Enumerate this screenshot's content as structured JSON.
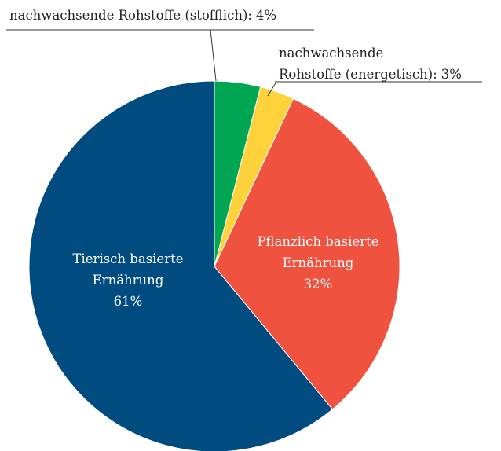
{
  "chart_data": {
    "type": "pie",
    "categories": [
      "nachwachsende Rohstoffe (stofflich):",
      "nachwachsende\nRohstoffe (energetisch):",
      "Pflanzlich basierte\nErnährung",
      "Tierisch basierte\nErnährung"
    ],
    "values": [
      4,
      3,
      32,
      61
    ],
    "value_labels": [
      "4%",
      "3%",
      "32%",
      "61%"
    ],
    "colors": [
      "#00a651",
      "#fdd23a",
      "#ef5340",
      "#004b80"
    ]
  }
}
